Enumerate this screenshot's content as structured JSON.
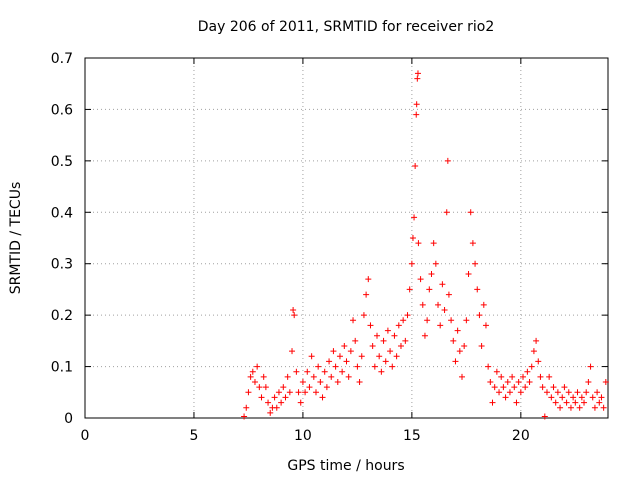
{
  "chart_data": {
    "type": "scatter",
    "title": "Day 206 of 2011, SRMTID for receiver rio2",
    "xlabel": "GPS time / hours",
    "ylabel": "SRMTID / TECUs",
    "xlim": [
      0,
      24
    ],
    "ylim": [
      0,
      0.7
    ],
    "xticks": [
      "0",
      "5",
      "10",
      "15",
      "20"
    ],
    "yticks": [
      "0",
      "0.1",
      "0.2",
      "0.3",
      "0.4",
      "0.5",
      "0.6",
      "0.7"
    ],
    "grid": true,
    "marker": "+",
    "color": "#ff0000",
    "series": [
      {
        "name": "rio2",
        "points": [
          [
            7.3,
            0.003
          ],
          [
            7.4,
            0.02
          ],
          [
            7.5,
            0.05
          ],
          [
            7.6,
            0.08
          ],
          [
            7.7,
            0.09
          ],
          [
            7.8,
            0.07
          ],
          [
            7.9,
            0.1
          ],
          [
            8.0,
            0.06
          ],
          [
            8.1,
            0.04
          ],
          [
            8.2,
            0.08
          ],
          [
            8.3,
            0.06
          ],
          [
            8.4,
            0.03
          ],
          [
            8.5,
            0.01
          ],
          [
            8.6,
            0.02
          ],
          [
            8.7,
            0.04
          ],
          [
            8.8,
            0.02
          ],
          [
            8.9,
            0.05
          ],
          [
            9.0,
            0.03
          ],
          [
            9.1,
            0.06
          ],
          [
            9.2,
            0.04
          ],
          [
            9.3,
            0.08
          ],
          [
            9.4,
            0.05
          ],
          [
            9.5,
            0.13
          ],
          [
            9.55,
            0.21
          ],
          [
            9.6,
            0.2
          ],
          [
            9.7,
            0.09
          ],
          [
            9.8,
            0.05
          ],
          [
            9.9,
            0.03
          ],
          [
            10.0,
            0.07
          ],
          [
            10.1,
            0.05
          ],
          [
            10.2,
            0.09
          ],
          [
            10.3,
            0.06
          ],
          [
            10.4,
            0.12
          ],
          [
            10.5,
            0.08
          ],
          [
            10.6,
            0.05
          ],
          [
            10.7,
            0.1
          ],
          [
            10.8,
            0.07
          ],
          [
            10.9,
            0.04
          ],
          [
            11.0,
            0.09
          ],
          [
            11.1,
            0.06
          ],
          [
            11.2,
            0.11
          ],
          [
            11.3,
            0.08
          ],
          [
            11.4,
            0.13
          ],
          [
            11.5,
            0.1
          ],
          [
            11.6,
            0.07
          ],
          [
            11.7,
            0.12
          ],
          [
            11.8,
            0.09
          ],
          [
            11.9,
            0.14
          ],
          [
            12.0,
            0.11
          ],
          [
            12.1,
            0.08
          ],
          [
            12.2,
            0.13
          ],
          [
            12.3,
            0.19
          ],
          [
            12.4,
            0.15
          ],
          [
            12.5,
            0.1
          ],
          [
            12.6,
            0.07
          ],
          [
            12.7,
            0.12
          ],
          [
            12.8,
            0.2
          ],
          [
            12.9,
            0.24
          ],
          [
            13.0,
            0.27
          ],
          [
            13.1,
            0.18
          ],
          [
            13.2,
            0.14
          ],
          [
            13.3,
            0.1
          ],
          [
            13.4,
            0.16
          ],
          [
            13.5,
            0.12
          ],
          [
            13.6,
            0.09
          ],
          [
            13.7,
            0.15
          ],
          [
            13.8,
            0.11
          ],
          [
            13.9,
            0.17
          ],
          [
            14.0,
            0.13
          ],
          [
            14.1,
            0.1
          ],
          [
            14.2,
            0.16
          ],
          [
            14.3,
            0.12
          ],
          [
            14.4,
            0.18
          ],
          [
            14.5,
            0.14
          ],
          [
            14.6,
            0.19
          ],
          [
            14.7,
            0.15
          ],
          [
            14.8,
            0.2
          ],
          [
            14.9,
            0.25
          ],
          [
            15.0,
            0.3
          ],
          [
            15.05,
            0.35
          ],
          [
            15.1,
            0.39
          ],
          [
            15.15,
            0.49
          ],
          [
            15.2,
            0.59
          ],
          [
            15.22,
            0.61
          ],
          [
            15.25,
            0.66
          ],
          [
            15.28,
            0.67
          ],
          [
            15.3,
            0.34
          ],
          [
            15.4,
            0.27
          ],
          [
            15.5,
            0.22
          ],
          [
            15.6,
            0.16
          ],
          [
            15.7,
            0.19
          ],
          [
            15.8,
            0.25
          ],
          [
            15.9,
            0.28
          ],
          [
            16.0,
            0.34
          ],
          [
            16.1,
            0.3
          ],
          [
            16.2,
            0.22
          ],
          [
            16.3,
            0.18
          ],
          [
            16.4,
            0.26
          ],
          [
            16.5,
            0.21
          ],
          [
            16.6,
            0.4
          ],
          [
            16.65,
            0.5
          ],
          [
            16.7,
            0.24
          ],
          [
            16.8,
            0.19
          ],
          [
            16.9,
            0.15
          ],
          [
            17.0,
            0.11
          ],
          [
            17.1,
            0.17
          ],
          [
            17.2,
            0.13
          ],
          [
            17.3,
            0.08
          ],
          [
            17.4,
            0.14
          ],
          [
            17.5,
            0.19
          ],
          [
            17.6,
            0.28
          ],
          [
            17.7,
            0.4
          ],
          [
            17.8,
            0.34
          ],
          [
            17.9,
            0.3
          ],
          [
            18.0,
            0.25
          ],
          [
            18.1,
            0.2
          ],
          [
            18.2,
            0.14
          ],
          [
            18.3,
            0.22
          ],
          [
            18.4,
            0.18
          ],
          [
            18.5,
            0.1
          ],
          [
            18.6,
            0.07
          ],
          [
            18.7,
            0.03
          ],
          [
            18.8,
            0.06
          ],
          [
            18.9,
            0.09
          ],
          [
            19.0,
            0.05
          ],
          [
            19.1,
            0.08
          ],
          [
            19.2,
            0.06
          ],
          [
            19.3,
            0.04
          ],
          [
            19.4,
            0.07
          ],
          [
            19.5,
            0.05
          ],
          [
            19.6,
            0.08
          ],
          [
            19.7,
            0.06
          ],
          [
            19.8,
            0.03
          ],
          [
            19.9,
            0.07
          ],
          [
            20.0,
            0.05
          ],
          [
            20.1,
            0.08
          ],
          [
            20.2,
            0.06
          ],
          [
            20.3,
            0.09
          ],
          [
            20.4,
            0.07
          ],
          [
            20.5,
            0.1
          ],
          [
            20.6,
            0.13
          ],
          [
            20.7,
            0.15
          ],
          [
            20.8,
            0.11
          ],
          [
            20.9,
            0.08
          ],
          [
            21.0,
            0.06
          ],
          [
            21.1,
            0.003
          ],
          [
            21.2,
            0.05
          ],
          [
            21.3,
            0.08
          ],
          [
            21.4,
            0.04
          ],
          [
            21.5,
            0.06
          ],
          [
            21.6,
            0.03
          ],
          [
            21.7,
            0.05
          ],
          [
            21.8,
            0.02
          ],
          [
            21.9,
            0.04
          ],
          [
            22.0,
            0.06
          ],
          [
            22.1,
            0.03
          ],
          [
            22.2,
            0.05
          ],
          [
            22.3,
            0.02
          ],
          [
            22.4,
            0.04
          ],
          [
            22.5,
            0.03
          ],
          [
            22.6,
            0.05
          ],
          [
            22.7,
            0.02
          ],
          [
            22.8,
            0.04
          ],
          [
            22.9,
            0.03
          ],
          [
            23.0,
            0.05
          ],
          [
            23.1,
            0.07
          ],
          [
            23.2,
            0.1
          ],
          [
            23.3,
            0.04
          ],
          [
            23.4,
            0.02
          ],
          [
            23.5,
            0.05
          ],
          [
            23.6,
            0.03
          ],
          [
            23.7,
            0.04
          ],
          [
            23.8,
            0.02
          ],
          [
            23.9,
            0.07
          ]
        ]
      }
    ]
  }
}
